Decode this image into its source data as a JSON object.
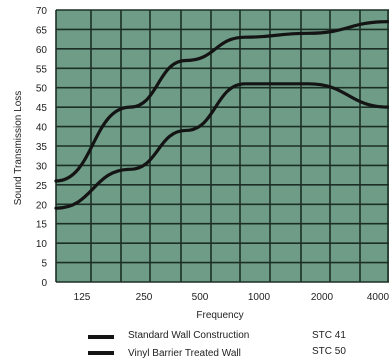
{
  "chart_data": {
    "type": "line",
    "title": "",
    "xlabel": "Frequency",
    "ylabel": "Sound Transmission Loss",
    "x": [
      "125",
      "250",
      "500",
      "1000",
      "2000",
      "4000"
    ],
    "ylim": [
      0,
      70
    ],
    "yticks": [
      "0",
      "5",
      "10",
      "15",
      "20",
      "25",
      "30",
      "35",
      "40",
      "45",
      "50",
      "55",
      "60",
      "65",
      "70"
    ],
    "grid": true,
    "legend_position": "bottom",
    "colors": {
      "plot_bg": "#6f9c86",
      "grid": "#1c2f26",
      "line": "#141414"
    },
    "series": [
      {
        "name": "Standard Wall Construction",
        "stc": "STC 41",
        "values": [
          19,
          29,
          39,
          51,
          51,
          45
        ]
      },
      {
        "name": "Vinyl Barrier Treated Wall",
        "stc": "STC 50",
        "values": [
          26,
          45,
          57,
          63,
          64,
          67
        ]
      }
    ]
  }
}
